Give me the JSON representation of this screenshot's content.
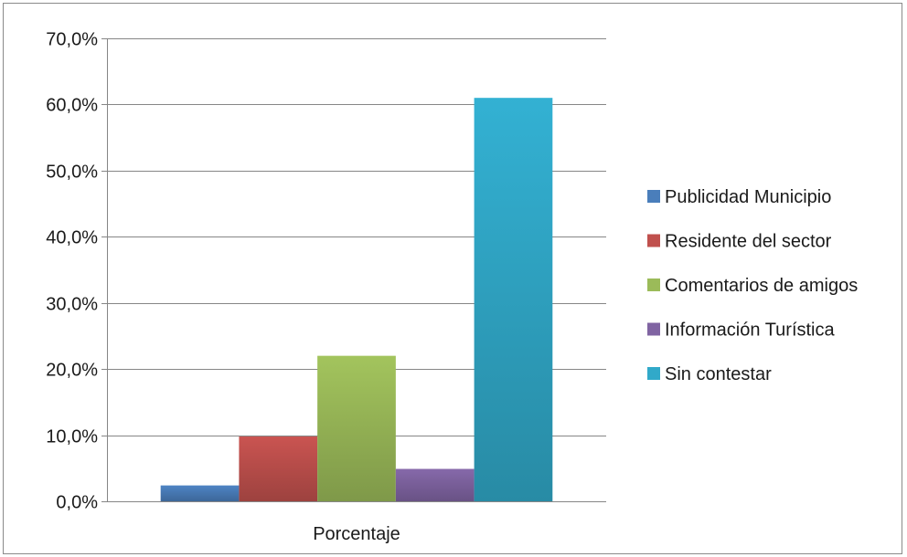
{
  "chart_data": {
    "type": "bar",
    "categories": [
      "Porcentaje"
    ],
    "series": [
      {
        "name": "Publicidad Municipio",
        "values": [
          2.4
        ],
        "color": "#4a7ebb"
      },
      {
        "name": "Residente del sector",
        "values": [
          9.8
        ],
        "color": "#c0504d"
      },
      {
        "name": "Comentarios de amigos",
        "values": [
          22.0
        ],
        "color": "#9bbb59"
      },
      {
        "name": "Información Turística",
        "values": [
          4.9
        ],
        "color": "#8064a2"
      },
      {
        "name": "Sin contestar",
        "values": [
          61.0
        ],
        "color": "#31a9c9"
      }
    ],
    "y_ticks": [
      "0,0%",
      "10,0%",
      "20,0%",
      "30,0%",
      "40,0%",
      "50,0%",
      "60,0%",
      "70,0%"
    ],
    "ylim": [
      0,
      70
    ],
    "y_unit": "percent",
    "grid": true,
    "legend_position": "right",
    "title": "",
    "xlabel": "",
    "ylabel": ""
  }
}
